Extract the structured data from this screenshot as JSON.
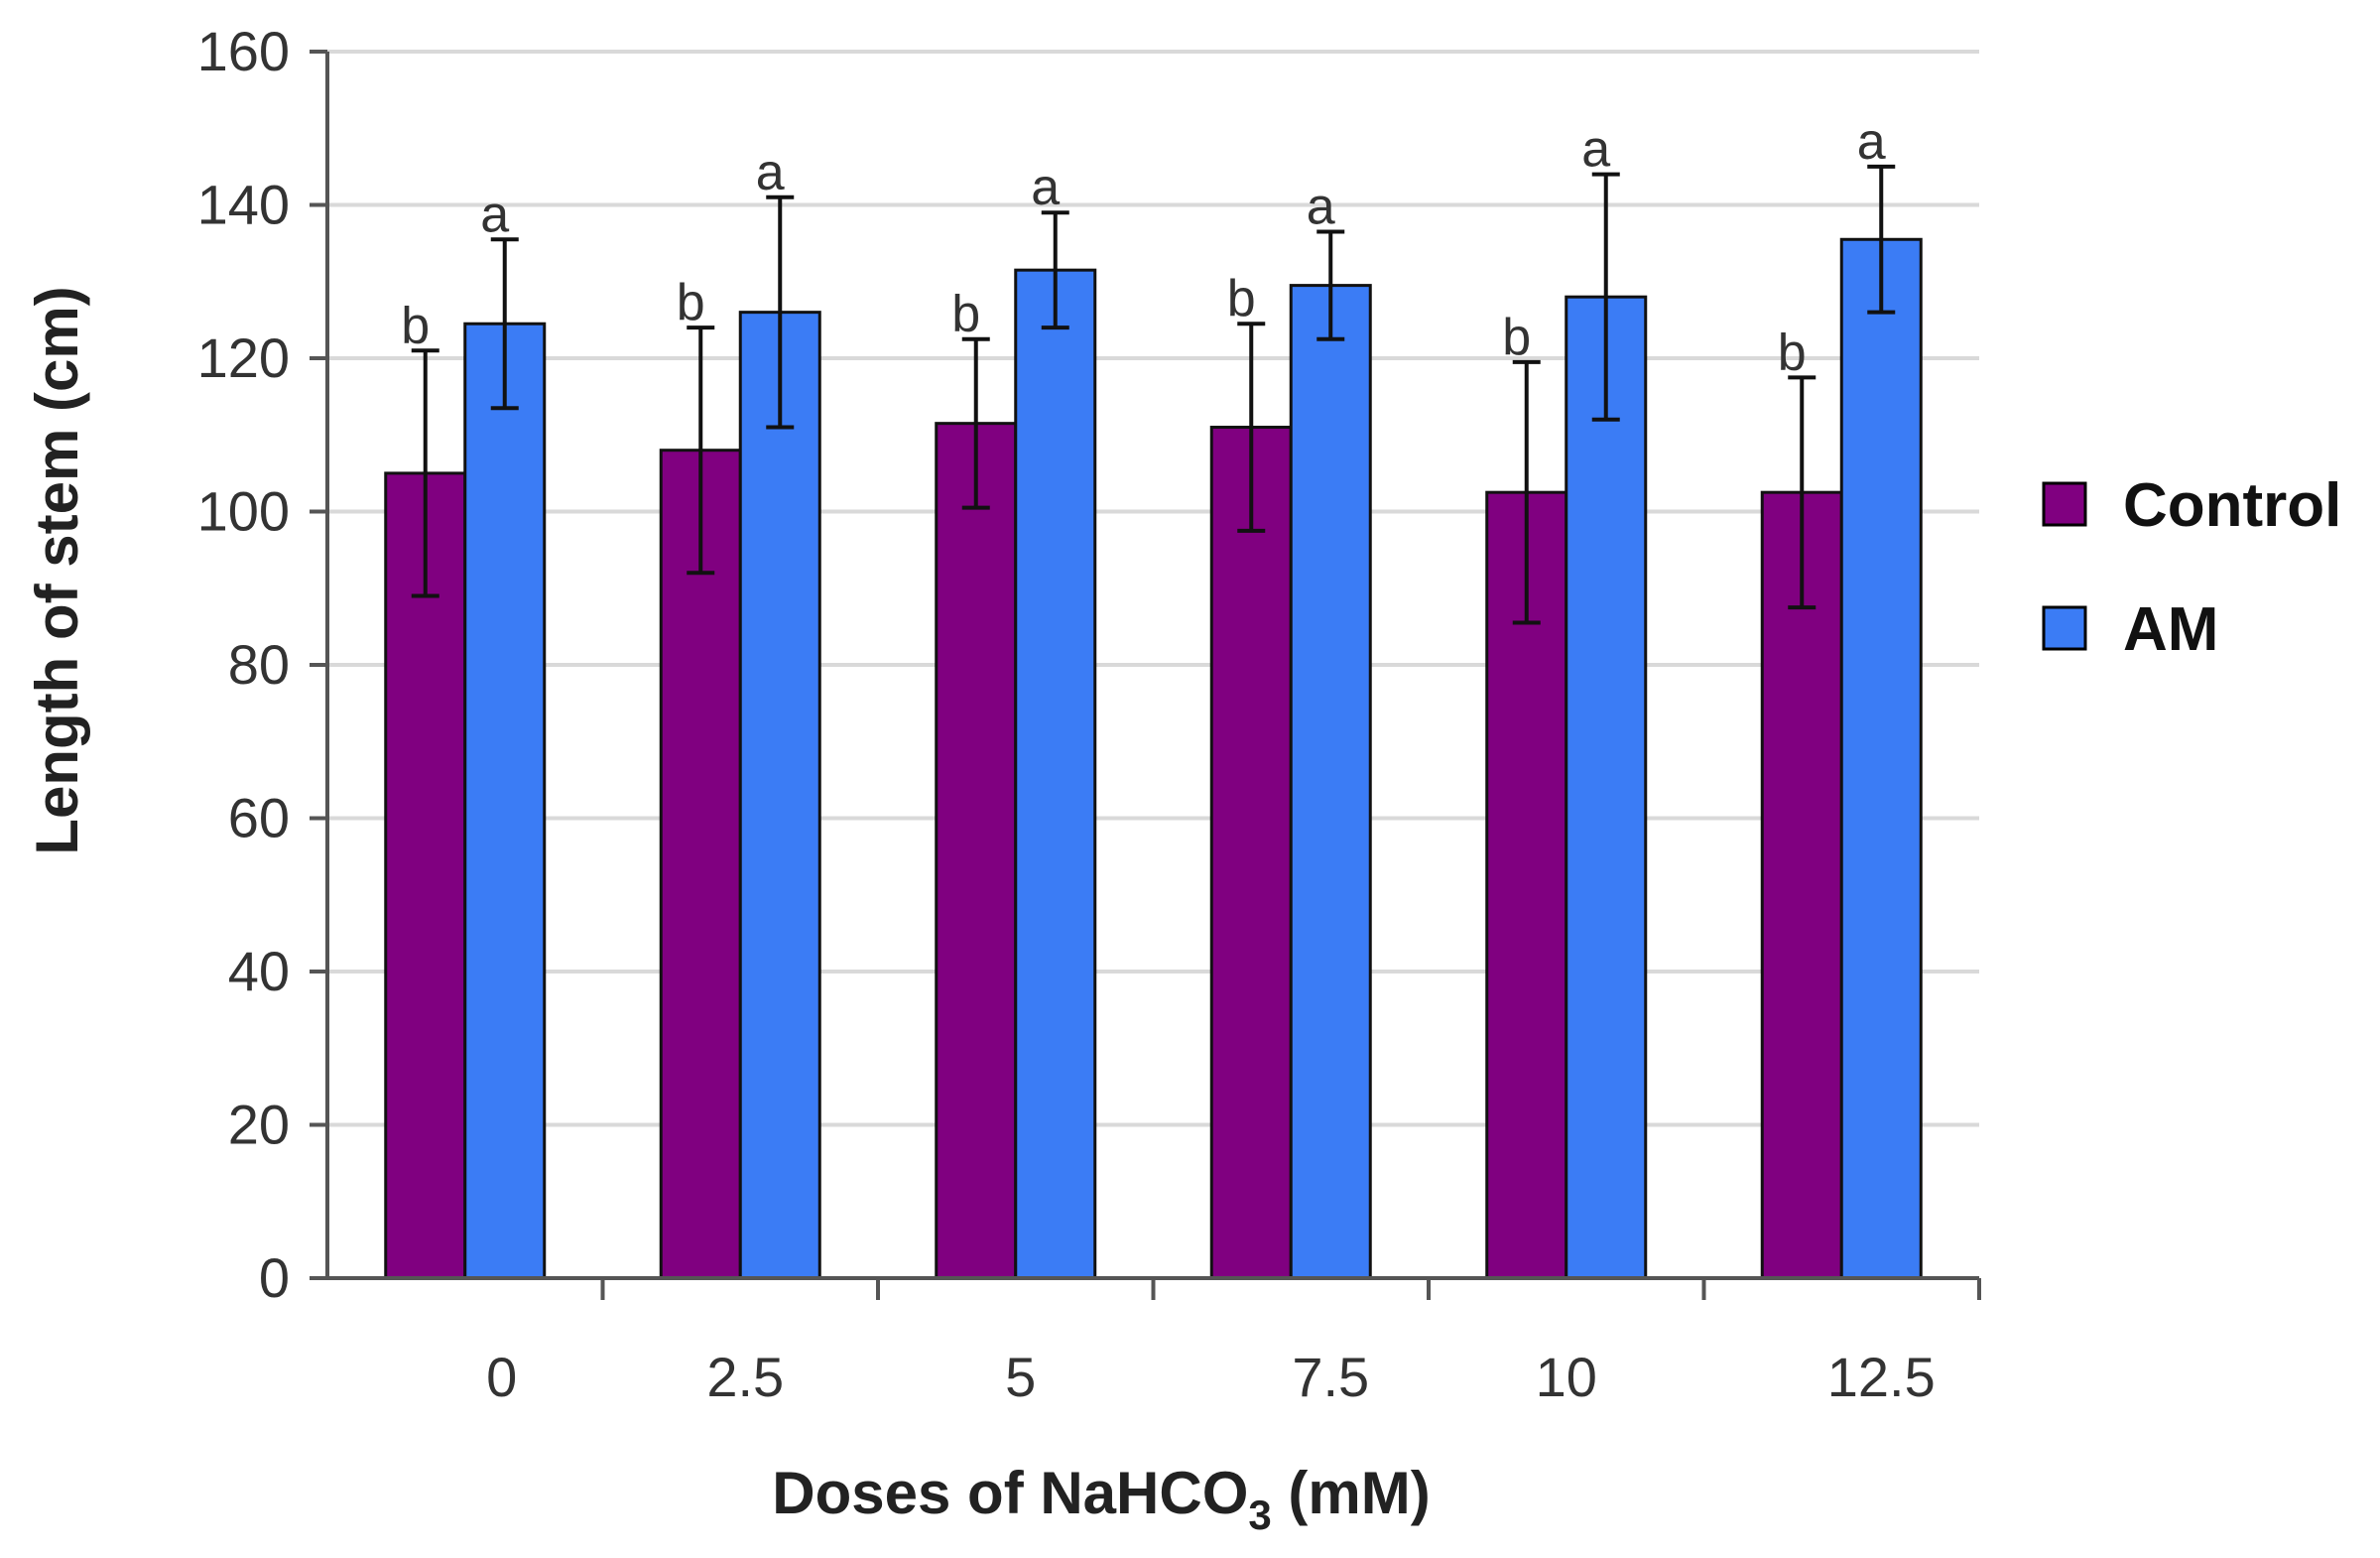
{
  "chart_data": {
    "type": "bar",
    "title": "",
    "xlabel_main": "Doses of NaHCO",
    "xlabel_sub": "3",
    "xlabel_tail": " (mM)",
    "ylabel": "Length of stem (cm)",
    "ylim": [
      0,
      160
    ],
    "yticks": [
      "0",
      "20",
      "40",
      "60",
      "80",
      "100",
      "120",
      "140",
      "160"
    ],
    "grid": true,
    "legend_position": "right",
    "categories": [
      "0",
      "2.5",
      "5",
      "7.5",
      "10",
      "12.5"
    ],
    "series": [
      {
        "name": "Control",
        "color": "#800080",
        "values": [
          105,
          108,
          111.5,
          111,
          102.5,
          102.5
        ],
        "errors": [
          16,
          16,
          11,
          13.5,
          17,
          15
        ],
        "sig": [
          "b",
          "b",
          "b",
          "b",
          "b",
          "b"
        ]
      },
      {
        "name": "AM",
        "color": "#3b7cf5",
        "values": [
          124.5,
          126,
          131.5,
          129.5,
          128,
          135.5
        ],
        "errors": [
          11,
          15,
          7.5,
          7,
          16,
          9.5
        ],
        "sig": [
          "a",
          "a",
          "a",
          "a",
          "a",
          "a"
        ]
      }
    ]
  }
}
